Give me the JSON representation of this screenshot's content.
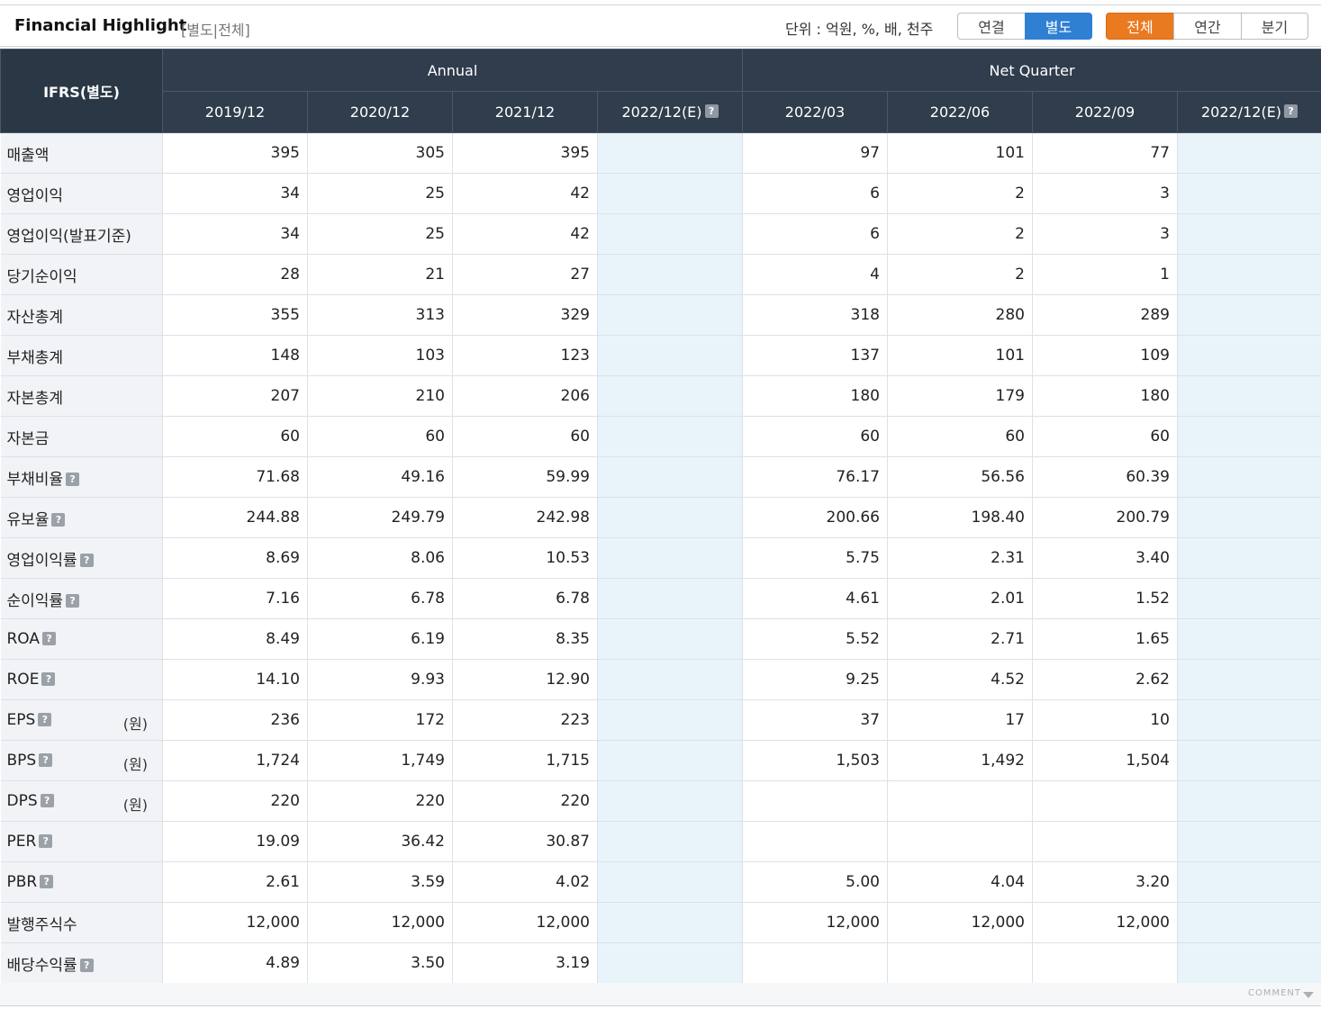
{
  "header": {
    "title": "Financial Highlight",
    "subtitle": "[별도|전체]",
    "unit": "단위 : 억원, %, 배, 천주",
    "scope_buttons": [
      "연결",
      "별도"
    ],
    "period_buttons": [
      "전체",
      "연간",
      "분기"
    ]
  },
  "table": {
    "corner": "IFRS(별도)",
    "group_annual": "Annual",
    "group_quarter": "Net Quarter",
    "columns": [
      "2019/12",
      "2020/12",
      "2021/12",
      "2022/12(E)",
      "2022/03",
      "2022/06",
      "2022/09",
      "2022/12(E)"
    ],
    "rows": [
      {
        "label": "매출액",
        "values": [
          "395",
          "305",
          "395",
          "",
          "97",
          "101",
          "77",
          ""
        ]
      },
      {
        "label": "영업이익",
        "values": [
          "34",
          "25",
          "42",
          "",
          "6",
          "2",
          "3",
          ""
        ]
      },
      {
        "label": "영업이익(발표기준)",
        "values": [
          "34",
          "25",
          "42",
          "",
          "6",
          "2",
          "3",
          ""
        ]
      },
      {
        "label": "당기순이익",
        "values": [
          "28",
          "21",
          "27",
          "",
          "4",
          "2",
          "1",
          ""
        ]
      },
      {
        "label": "자산총계",
        "values": [
          "355",
          "313",
          "329",
          "",
          "318",
          "280",
          "289",
          ""
        ]
      },
      {
        "label": "부채총계",
        "values": [
          "148",
          "103",
          "123",
          "",
          "137",
          "101",
          "109",
          ""
        ]
      },
      {
        "label": "자본총계",
        "values": [
          "207",
          "210",
          "206",
          "",
          "180",
          "179",
          "180",
          ""
        ]
      },
      {
        "label": "자본금",
        "values": [
          "60",
          "60",
          "60",
          "",
          "60",
          "60",
          "60",
          ""
        ]
      },
      {
        "label": "부채비율",
        "help": true,
        "values": [
          "71.68",
          "49.16",
          "59.99",
          "",
          "76.17",
          "56.56",
          "60.39",
          ""
        ]
      },
      {
        "label": "유보율",
        "help": true,
        "values": [
          "244.88",
          "249.79",
          "242.98",
          "",
          "200.66",
          "198.40",
          "200.79",
          ""
        ]
      },
      {
        "label": "영업이익률",
        "help": true,
        "values": [
          "8.69",
          "8.06",
          "10.53",
          "",
          "5.75",
          "2.31",
          "3.40",
          ""
        ]
      },
      {
        "label": "순이익률",
        "help": true,
        "values": [
          "7.16",
          "6.78",
          "6.78",
          "",
          "4.61",
          "2.01",
          "1.52",
          ""
        ]
      },
      {
        "label": "ROA",
        "help": true,
        "values": [
          "8.49",
          "6.19",
          "8.35",
          "",
          "5.52",
          "2.71",
          "1.65",
          ""
        ]
      },
      {
        "label": "ROE",
        "help": true,
        "values": [
          "14.10",
          "9.93",
          "12.90",
          "",
          "9.25",
          "4.52",
          "2.62",
          ""
        ]
      },
      {
        "label": "EPS",
        "help": true,
        "unit": "(원)",
        "values": [
          "236",
          "172",
          "223",
          "",
          "37",
          "17",
          "10",
          ""
        ]
      },
      {
        "label": "BPS",
        "help": true,
        "unit": "(원)",
        "values": [
          "1,724",
          "1,749",
          "1,715",
          "",
          "1,503",
          "1,492",
          "1,504",
          ""
        ]
      },
      {
        "label": "DPS",
        "help": true,
        "unit": "(원)",
        "values": [
          "220",
          "220",
          "220",
          "",
          "",
          "",
          "",
          ""
        ]
      },
      {
        "label": "PER",
        "help": true,
        "values": [
          "19.09",
          "36.42",
          "30.87",
          "",
          "",
          "",
          "",
          ""
        ]
      },
      {
        "label": "PBR",
        "help": true,
        "values": [
          "2.61",
          "3.59",
          "4.02",
          "",
          "5.00",
          "4.04",
          "3.20",
          ""
        ]
      },
      {
        "label": "발행주식수",
        "values": [
          "12,000",
          "12,000",
          "12,000",
          "",
          "12,000",
          "12,000",
          "12,000",
          ""
        ]
      },
      {
        "label": "배당수익률",
        "help": true,
        "values": [
          "4.89",
          "3.50",
          "3.19",
          "",
          "",
          "",
          "",
          ""
        ]
      }
    ]
  },
  "footer": {
    "comment": "COMMENT"
  },
  "colors": {
    "header_bg": "#2f3d4c",
    "label_bg": "#f1f3f6",
    "estimate_bg": "#e8f4fa",
    "active_blue": "#2f7fd3",
    "active_orange": "#ea7a20"
  }
}
